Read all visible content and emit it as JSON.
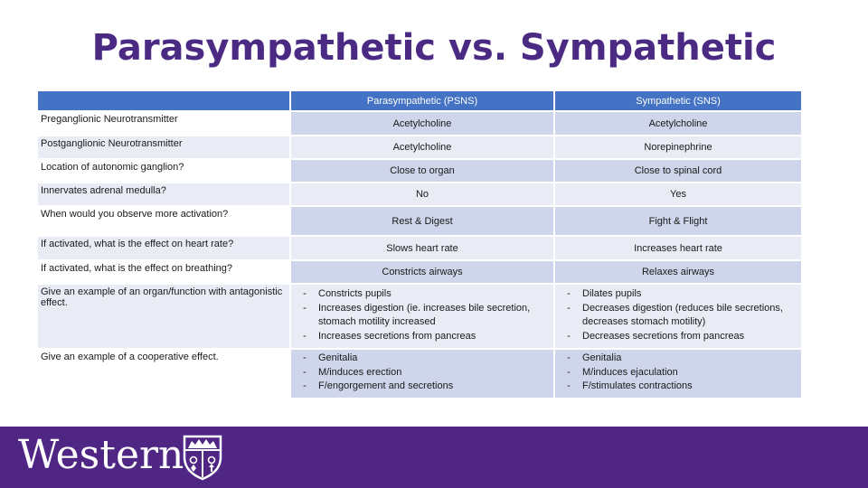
{
  "title": "Parasympathetic vs. Sympathetic",
  "table": {
    "headers": [
      "",
      "Parasympathetic (PSNS)",
      "Sympathetic (SNS)"
    ],
    "rows": [
      {
        "q": "Preganglionic Neurotransmitter",
        "psns": "Acetylcholine",
        "sns": "Acetylcholine"
      },
      {
        "q": "Postganglionic Neurotransmitter",
        "psns": "Acetylcholine",
        "sns": "Norepinephrine"
      },
      {
        "q": "Location of autonomic ganglion?",
        "psns": "Close to organ",
        "sns": "Close to spinal cord"
      },
      {
        "q": "Innervates adrenal medulla?",
        "psns": "No",
        "sns": "Yes"
      },
      {
        "q": "When would you observe more activation?",
        "psns": "Rest & Digest",
        "sns": "Fight & Flight"
      },
      {
        "q": "If activated, what is the effect on heart rate?",
        "psns": "Slows heart rate",
        "sns": "Increases heart rate"
      },
      {
        "q": "If activated, what is the effect on breathing?",
        "psns": "Constricts airways",
        "sns": "Relaxes airways"
      }
    ],
    "antagonistic": {
      "q": "Give an example of an organ/function with antagonistic effect.",
      "psns": [
        "Constricts pupils",
        "Increases digestion (ie. increases bile secretion, stomach motility increased",
        "Increases secretions from pancreas"
      ],
      "sns": [
        "Dilates pupils",
        "Decreases digestion (reduces bile secretions, decreases stomach motility)",
        "Decreases secretions from pancreas"
      ]
    },
    "cooperative": {
      "q": "Give an example of a cooperative effect.",
      "psns": [
        "Genitalia",
        "M/induces erection",
        "F/engorgement and secretions"
      ],
      "sns": [
        "Genitalia",
        "M/induces ejaculation",
        "F/stimulates contractions"
      ]
    },
    "bullet": "-"
  },
  "footer": {
    "logo_text": "Western",
    "color": "#4f2683"
  },
  "colors": {
    "title": "#4b2a84",
    "header": "#4472c4",
    "band_dark": "#cfd5ea",
    "band_light": "#e9ebf5"
  }
}
